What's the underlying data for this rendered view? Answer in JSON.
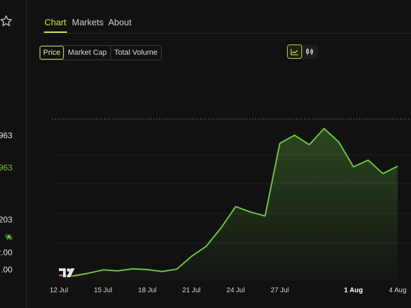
{
  "left_panel": {
    "values": [
      {
        "text": "963",
        "color": "#e6e6e6"
      },
      {
        "text": "963",
        "color": "#6cc644"
      },
      {
        "text": "203",
        "color": "#e6e6e6"
      },
      {
        "text": "%",
        "color": "#6cc644"
      },
      {
        "text": "2.00",
        "color": "#e6e6e6"
      },
      {
        "text": ".00",
        "color": "#e6e6e6"
      }
    ]
  },
  "tabs": [
    {
      "label": "Chart",
      "active": true
    },
    {
      "label": "Markets",
      "active": false
    },
    {
      "label": "About",
      "active": false
    }
  ],
  "metric_toggle": [
    {
      "label": "Price",
      "active": true
    },
    {
      "label": "Market Cap",
      "active": false
    },
    {
      "label": "Total Volume",
      "active": false
    }
  ],
  "chart_type_toggle": [
    {
      "icon": "line-chart-icon",
      "active": true
    },
    {
      "icon": "candlestick-chart-icon",
      "active": false
    }
  ],
  "watermark": "TV",
  "colors": {
    "accent": "#c7e75d",
    "up": "#6cc644",
    "down": "#e0684e",
    "background": "#111111"
  },
  "chart_data": {
    "type": "area",
    "x_tick_labels": [
      "12 Jul",
      "15 Jul",
      "18 Jul",
      "21 Jul",
      "24 Jul",
      "27 Jul",
      "1 Aug",
      "4 Aug"
    ],
    "x_tick_days": [
      0,
      3,
      6,
      9,
      12,
      15,
      20,
      23
    ],
    "bold_ticks": [
      "1 Aug"
    ],
    "x_days": [
      0,
      1,
      2,
      3,
      4,
      5,
      6,
      7,
      8,
      9,
      10,
      11,
      12,
      13,
      14,
      15,
      16,
      17,
      18,
      19,
      20,
      21,
      22,
      23
    ],
    "values": [
      0.4,
      0.35,
      0.55,
      0.8,
      0.72,
      0.88,
      0.82,
      0.68,
      0.85,
      1.8,
      2.55,
      3.9,
      5.5,
      5.1,
      4.8,
      10.2,
      10.8,
      10.1,
      11.3,
      10.3,
      8.45,
      8.95,
      7.95,
      8.5
    ],
    "initial_down_segments": 2,
    "ylim": [
      0,
      12
    ],
    "reference_line_value": 12,
    "grid": "horizontal",
    "legend": "none"
  }
}
